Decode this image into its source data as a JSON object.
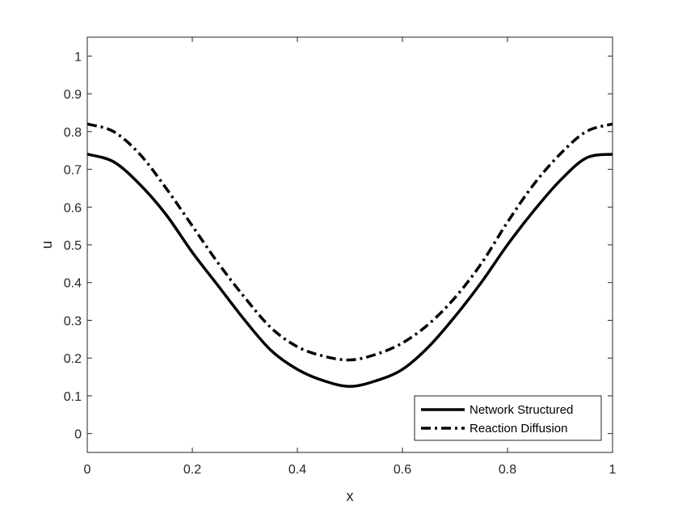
{
  "chart_data": {
    "type": "line",
    "xlabel": "x",
    "ylabel": "u",
    "xlim": [
      0,
      1
    ],
    "ylim": [
      -0.05,
      1.05
    ],
    "xticks": [
      0,
      0.2,
      0.4,
      0.6,
      0.8,
      1
    ],
    "xtick_labels": [
      "0",
      "0.2",
      "0.4",
      "0.6",
      "0.8",
      "1"
    ],
    "yticks": [
      0,
      0.1,
      0.2,
      0.3,
      0.4,
      0.5,
      0.6,
      0.7,
      0.8,
      0.9,
      1
    ],
    "ytick_labels": [
      "0",
      "0.1",
      "0.2",
      "0.3",
      "0.4",
      "0.5",
      "0.6",
      "0.7",
      "0.8",
      "0.9",
      "1"
    ],
    "grid": false,
    "legend_position": "bottom-right",
    "series": [
      {
        "name": "Network Structured",
        "style": "solid",
        "color": "#000000",
        "x": [
          0,
          0.05,
          0.1,
          0.15,
          0.2,
          0.25,
          0.3,
          0.35,
          0.4,
          0.45,
          0.5,
          0.55,
          0.6,
          0.65,
          0.7,
          0.75,
          0.8,
          0.85,
          0.9,
          0.95,
          1
        ],
        "y": [
          0.74,
          0.72,
          0.66,
          0.58,
          0.48,
          0.39,
          0.3,
          0.22,
          0.17,
          0.14,
          0.125,
          0.14,
          0.17,
          0.23,
          0.31,
          0.4,
          0.5,
          0.59,
          0.67,
          0.73,
          0.74
        ]
      },
      {
        "name": "Reaction Diffusion",
        "style": "dashdot",
        "color": "#000000",
        "x": [
          0,
          0.05,
          0.1,
          0.15,
          0.2,
          0.25,
          0.3,
          0.35,
          0.4,
          0.45,
          0.5,
          0.55,
          0.6,
          0.65,
          0.7,
          0.75,
          0.8,
          0.85,
          0.9,
          0.95,
          1
        ],
        "y": [
          0.82,
          0.8,
          0.74,
          0.65,
          0.55,
          0.45,
          0.36,
          0.28,
          0.23,
          0.205,
          0.195,
          0.21,
          0.24,
          0.29,
          0.36,
          0.45,
          0.56,
          0.66,
          0.74,
          0.8,
          0.82
        ]
      }
    ]
  }
}
